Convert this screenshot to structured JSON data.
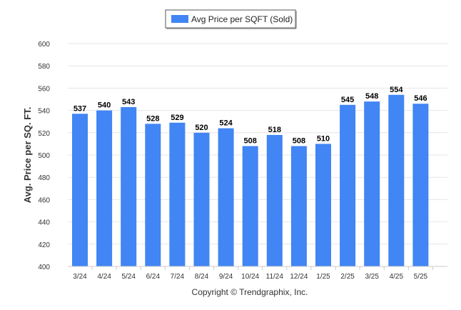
{
  "chart_data": {
    "type": "bar",
    "categories": [
      "3/24",
      "4/24",
      "5/24",
      "6/24",
      "7/24",
      "8/24",
      "9/24",
      "10/24",
      "11/24",
      "12/24",
      "1/25",
      "2/25",
      "3/25",
      "4/25",
      "5/25"
    ],
    "series": [
      {
        "name": "Avg Price per SQFT (Sold)",
        "values": [
          537,
          540,
          543,
          528,
          529,
          520,
          524,
          508,
          518,
          508,
          510,
          545,
          548,
          554,
          546
        ],
        "color": "#4285f4"
      }
    ],
    "title": "",
    "xlabel": "",
    "ylabel": "Avg. Price per SQ. FT.",
    "ylim": [
      400,
      600
    ],
    "yticks": [
      400,
      420,
      440,
      460,
      480,
      500,
      520,
      540,
      560,
      580,
      600
    ],
    "grid": true,
    "legend_position": "top-center",
    "data_labels": true
  },
  "footer": {
    "copyright": "Copyright © Trendgraphix, Inc."
  }
}
